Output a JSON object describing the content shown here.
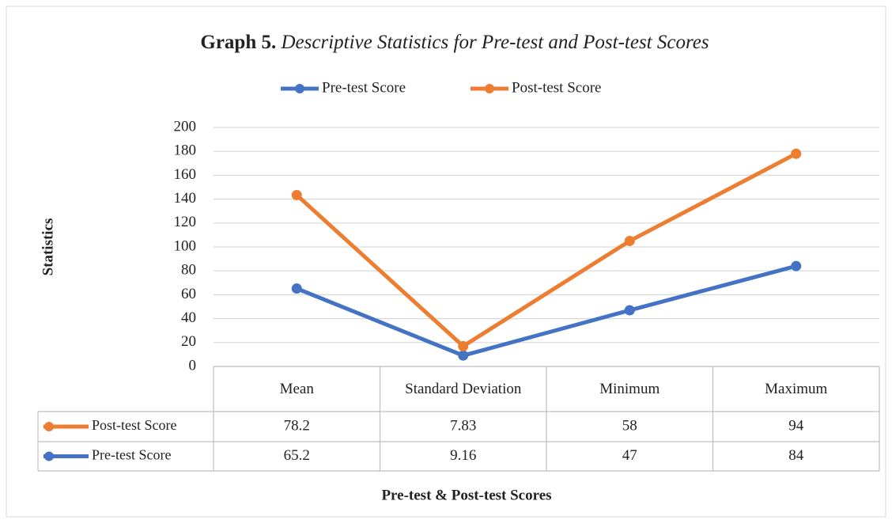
{
  "chart_data": {
    "type": "line",
    "stacked": true,
    "title_label": "Graph 5.",
    "title": "Descriptive Statistics for Pre-test and Post-test Scores",
    "x_label": "Pre-test & Post-test Scores",
    "y_label": "Statistics",
    "categories": [
      "Mean",
      "Standard Deviation",
      "Minimum",
      "Maximum"
    ],
    "series": [
      {
        "name": "Pre-test Score",
        "color": "#4472c4",
        "values": [
          65.2,
          9.16,
          47,
          84
        ]
      },
      {
        "name": "Post-test Score",
        "color": "#ed7d31",
        "values": [
          78.2,
          7.83,
          58,
          94
        ]
      }
    ],
    "ylim": [
      0,
      200
    ],
    "yticks": [
      0,
      20,
      40,
      60,
      80,
      100,
      120,
      140,
      160,
      180,
      200
    ],
    "grid": true,
    "legend": "top",
    "data_table": true
  }
}
